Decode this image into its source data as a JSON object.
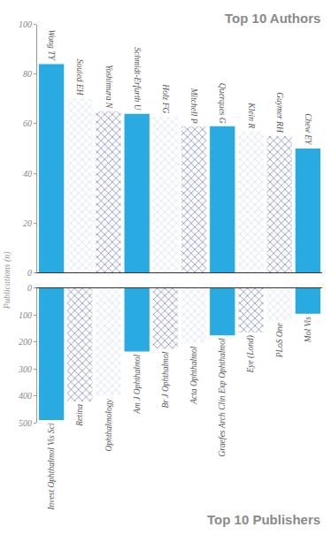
{
  "chart_data": [
    {
      "type": "bar",
      "title": "Top 10 Authors",
      "y_label": "Publications (n)",
      "categories": [
        "Wong TY",
        "Souied EH",
        "Yoshimura N",
        "Schmidt-Erfurth U",
        "Holz FG",
        "Mitchell P",
        "Querques G",
        "Klein R",
        "Guymer RH",
        "Chew EY"
      ],
      "values": [
        84,
        70,
        65,
        64,
        63,
        59,
        59,
        57,
        55,
        50
      ],
      "colors": [
        "#29abe2",
        "#b7c7ea",
        "#22328f",
        "#29abe2",
        "#b7c7ea",
        "#22328f",
        "#29abe2",
        "#b7c7ea",
        "#22328f",
        "#29abe2"
      ],
      "ylim": [
        0,
        100
      ],
      "yticks": [
        0,
        20,
        40,
        60,
        80,
        100
      ]
    },
    {
      "type": "bar",
      "title": "Top 10 Publishers",
      "categories": [
        "Invest Ophthalmol Vis Sci",
        "Retina",
        "Ophthalmology",
        "Am J Ophthalmol",
        "Br J Ophthalmol",
        "Acta Ophthalmol",
        "Graefes Arch Clin Exp Ophthalmol",
        "Eye (Lond)",
        "PLoS One",
        "Mol Vis"
      ],
      "values": [
        490,
        420,
        400,
        235,
        225,
        205,
        175,
        165,
        120,
        95
      ],
      "colors": [
        "#29abe2",
        "#22328f",
        "#b7c7ea",
        "#29abe2",
        "#22328f",
        "#b7c7ea",
        "#29abe2",
        "#22328f",
        "#b7c7ea",
        "#29abe2"
      ],
      "ylim": [
        0,
        500
      ],
      "yticks": [
        0,
        100,
        200,
        300,
        400,
        500
      ]
    }
  ]
}
